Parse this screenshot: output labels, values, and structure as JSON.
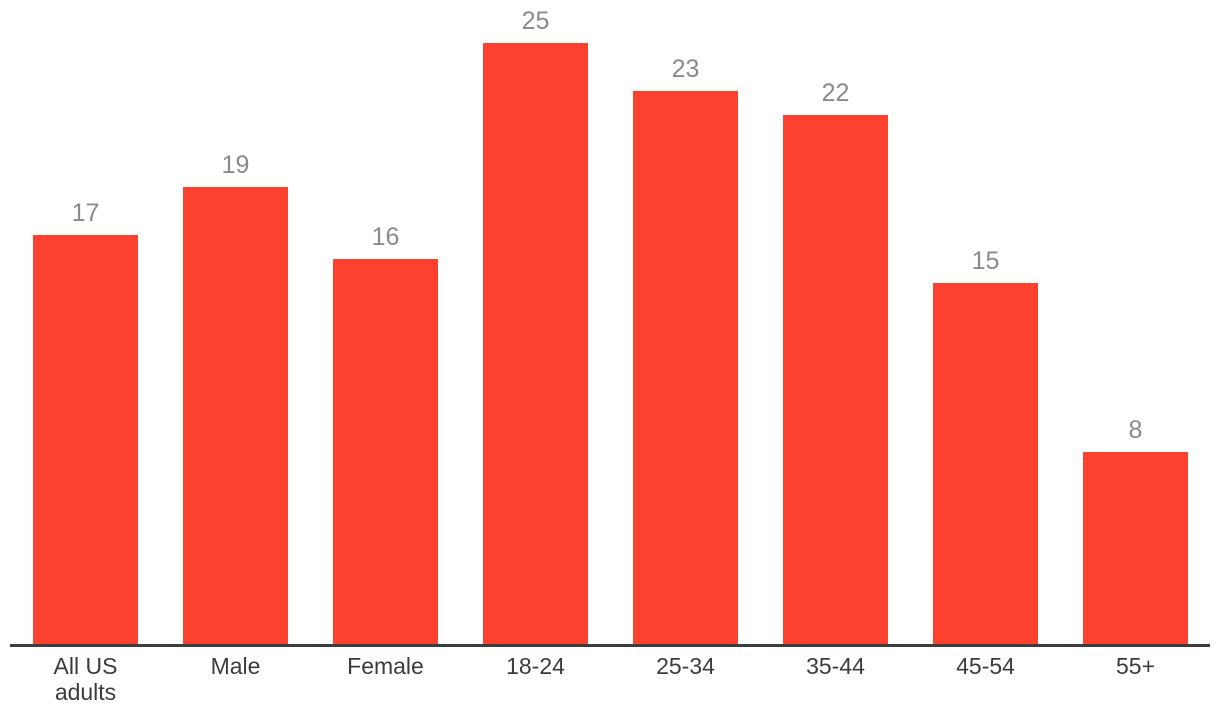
{
  "chart_data": {
    "type": "bar",
    "categories": [
      "All US adults",
      "Male",
      "Female",
      "18-24",
      "25-34",
      "35-44",
      "45-54",
      "55+"
    ],
    "values": [
      17,
      19,
      16,
      25,
      23,
      22,
      15,
      8
    ],
    "title": "",
    "xlabel": "",
    "ylabel": "",
    "ylim": [
      0,
      25
    ],
    "grid": false,
    "legend": "none",
    "value_labels_shown": true,
    "bar_color": "#fc412e",
    "value_label_color": "#8a8a8a",
    "category_label_color": "#3c3c3c",
    "axis_color": "#3d3d3d"
  }
}
